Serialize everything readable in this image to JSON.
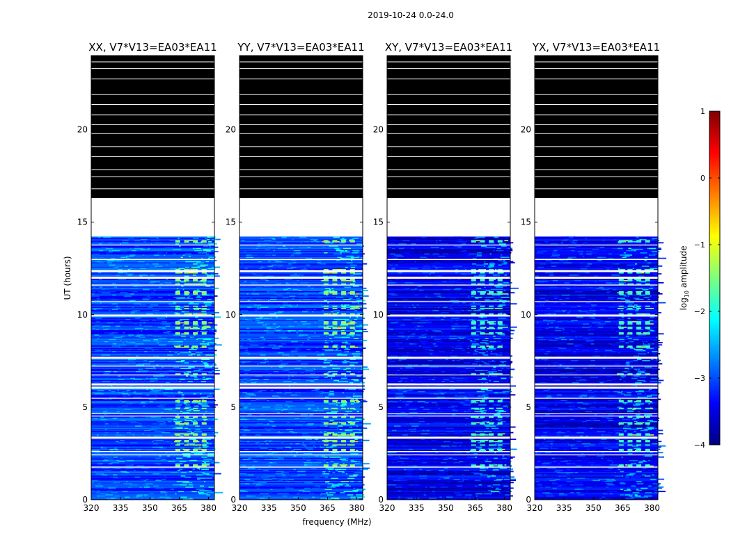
{
  "figure": {
    "suptitle": "2019-10-24 0.0-24.0",
    "xlabel": "frequency (MHz)",
    "ylabel": "UT (hours)"
  },
  "colorbar": {
    "label_prefix": "log",
    "label_sub": "10",
    "label_suffix": " amplitude",
    "range": [
      -4,
      1
    ],
    "ticks": [
      1,
      0,
      -1,
      -2,
      -3,
      -4
    ],
    "tick_labels": [
      "1",
      "0",
      "−1",
      "−2",
      "−3",
      "−4"
    ],
    "colormap": "jet",
    "colors": [
      "#00007f",
      "#0000ff",
      "#007fff",
      "#00ffff",
      "#7fff7f",
      "#ffff00",
      "#ff7f00",
      "#ff0000",
      "#7f0000"
    ]
  },
  "chart_data": [
    {
      "type": "heatmap",
      "title": "XX, V7*V13=EA03*EA11",
      "x_ticks": [
        320,
        335,
        350,
        365,
        380
      ],
      "xlim": [
        320,
        383
      ],
      "y_ticks": [
        0,
        5,
        10,
        15,
        20
      ],
      "ylim": [
        0,
        24
      ],
      "data_extent_hours": [
        0,
        14.2
      ],
      "gap_hours": [
        14.2,
        16.3
      ],
      "flagged_hours": [
        16.3,
        24
      ],
      "rfi_band_mhz": [
        362,
        380
      ],
      "typical_log10_amplitude": -3.0
    },
    {
      "type": "heatmap",
      "title": "YY, V7*V13=EA03*EA11",
      "x_ticks": [
        320,
        335,
        350,
        365,
        380
      ],
      "xlim": [
        320,
        383
      ],
      "y_ticks": [
        0,
        5,
        10,
        15,
        20
      ],
      "ylim": [
        0,
        24
      ],
      "data_extent_hours": [
        0,
        14.2
      ],
      "gap_hours": [
        14.2,
        16.3
      ],
      "flagged_hours": [
        16.3,
        24
      ],
      "rfi_band_mhz": [
        362,
        380
      ],
      "typical_log10_amplitude": -3.0
    },
    {
      "type": "heatmap",
      "title": "XY, V7*V13=EA03*EA11",
      "x_ticks": [
        320,
        335,
        350,
        365,
        380
      ],
      "xlim": [
        320,
        383
      ],
      "y_ticks": [
        0,
        5,
        10,
        15,
        20
      ],
      "ylim": [
        0,
        24
      ],
      "data_extent_hours": [
        0,
        14.2
      ],
      "gap_hours": [
        14.2,
        16.3
      ],
      "flagged_hours": [
        16.3,
        24
      ],
      "rfi_band_mhz": [
        362,
        380
      ],
      "typical_log10_amplitude": -3.4
    },
    {
      "type": "heatmap",
      "title": "YX, V7*V13=EA03*EA11",
      "x_ticks": [
        320,
        335,
        350,
        365,
        380
      ],
      "xlim": [
        320,
        383
      ],
      "y_ticks": [
        0,
        5,
        10,
        15,
        20
      ],
      "ylim": [
        0,
        24
      ],
      "data_extent_hours": [
        0,
        14.2
      ],
      "gap_hours": [
        14.2,
        16.3
      ],
      "flagged_hours": [
        16.3,
        24
      ],
      "rfi_band_mhz": [
        362,
        380
      ],
      "typical_log10_amplitude": -3.4
    }
  ]
}
